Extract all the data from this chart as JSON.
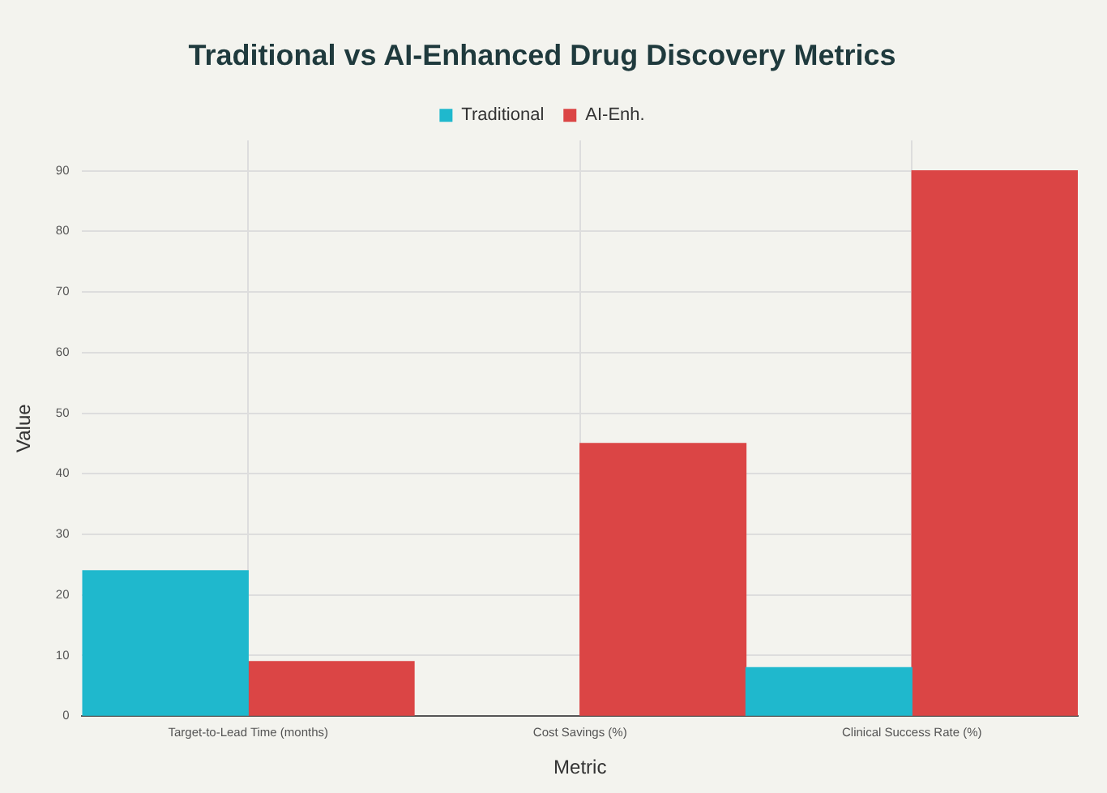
{
  "chart_data": {
    "type": "bar",
    "title": "Traditional vs AI-Enhanced Drug Discovery Metrics",
    "xlabel": "Metric",
    "ylabel": "Value",
    "categories": [
      "Target-to-Lead Time (months)",
      "Cost Savings (%)",
      "Clinical Success Rate (%)"
    ],
    "series": [
      {
        "name": "Traditional",
        "color": "#1fb8cd",
        "values": [
          24,
          null,
          8
        ]
      },
      {
        "name": "AI-Enh.",
        "color": "#db4545",
        "values": [
          9,
          45,
          90
        ]
      }
    ],
    "ylim": [
      0,
      95
    ],
    "yticks": [
      0,
      10,
      20,
      30,
      40,
      50,
      60,
      70,
      80,
      90
    ],
    "grid": true,
    "legend": "top"
  }
}
